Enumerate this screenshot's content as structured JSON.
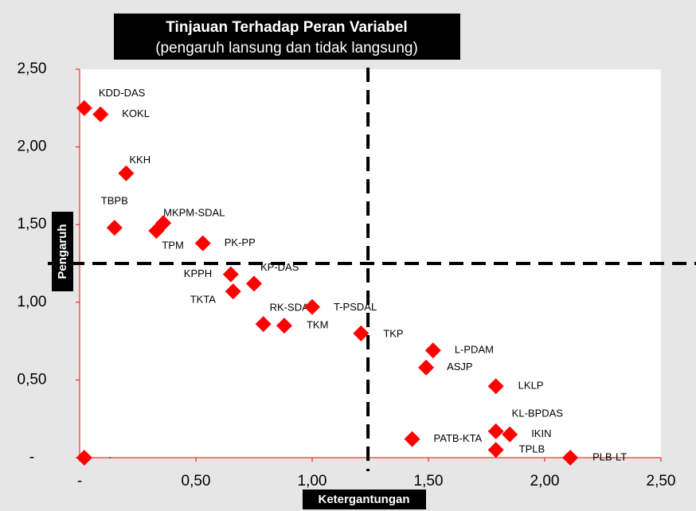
{
  "chart_data": {
    "type": "scatter",
    "title": "Tinjauan Terhadap Peran Variabel",
    "subtitle": "(pengaruh lansung dan tidak langsung)",
    "x_label": "Ketergantungan",
    "y_label": "Pengaruh",
    "labels": [
      "KDD-DAS",
      "KOKL",
      "KKH",
      "TBPB",
      "MKPM-SDAL",
      "TPM",
      "PK-PP",
      "KPPH",
      "KP-DAS",
      "TKTA",
      "RK-SDA",
      "T-PSDAL",
      "TKM",
      "TKP",
      "L-PDAM",
      "ASJP",
      "LKLP",
      "KL-BPDAS",
      "IKIN",
      "PATB-KTA",
      "TPLB",
      "PLB-LT",
      "-"
    ],
    "x": [
      0.02,
      0.09,
      0.2,
      0.15,
      0.36,
      0.33,
      0.53,
      0.65,
      0.75,
      0.66,
      0.79,
      1.0,
      0.88,
      1.21,
      1.52,
      1.49,
      1.79,
      1.79,
      1.85,
      1.43,
      1.79,
      2.11,
      0.02
    ],
    "y": [
      2.25,
      2.21,
      1.83,
      1.48,
      1.51,
      1.46,
      1.38,
      1.18,
      1.12,
      1.07,
      0.86,
      0.97,
      0.85,
      0.8,
      0.69,
      0.58,
      0.46,
      0.17,
      0.15,
      0.12,
      0.05,
      0,
      0
    ],
    "color": "#ff0000",
    "xlim": [
      0,
      2.5
    ],
    "ylim": [
      0,
      2.5
    ],
    "xticks": [
      {
        "value": 0,
        "label": "-"
      },
      {
        "value": 0.5,
        "label": "0,50"
      },
      {
        "value": 1,
        "label": "1,00"
      },
      {
        "value": 1.5,
        "label": "1,50"
      },
      {
        "value": 2,
        "label": "2,00"
      },
      {
        "value": 2.5,
        "label": "2,50"
      }
    ],
    "yticks": [
      {
        "value": 0,
        "label": "-"
      },
      {
        "value": 0.5,
        "label": "0,50"
      },
      {
        "value": 1,
        "label": "1,00"
      },
      {
        "value": 1.5,
        "label": "1,50"
      },
      {
        "value": 2,
        "label": "2,00"
      },
      {
        "value": 2.5,
        "label": "2,50"
      }
    ],
    "vline": 1.24,
    "hline": 1.25
  }
}
